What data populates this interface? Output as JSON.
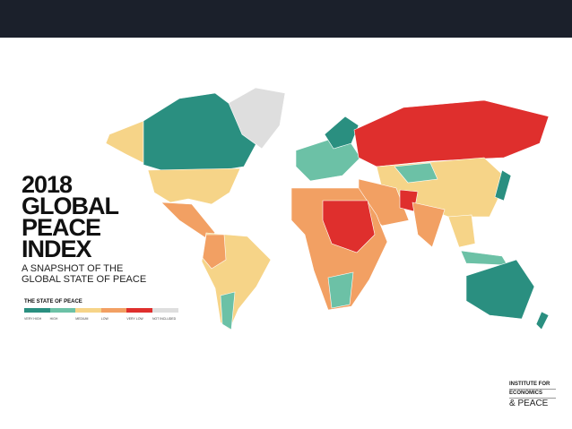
{
  "title": {
    "lines": [
      "2018",
      "GLOBAL",
      "PEACE",
      "INDEX"
    ]
  },
  "subtitle": {
    "lines": [
      "A SNAPSHOT OF THE",
      "GLOBAL STATE OF PEACE"
    ]
  },
  "legend": {
    "title": "THE STATE OF PEACE",
    "items": [
      {
        "name": "VERY HIGH",
        "color": "#2a8f80"
      },
      {
        "name": "HIGH",
        "color": "#6cc1a6"
      },
      {
        "name": "MEDIUM",
        "color": "#f6d488"
      },
      {
        "name": "LOW",
        "color": "#f2a063"
      },
      {
        "name": "VERY LOW",
        "color": "#df2f2d"
      },
      {
        "name": "NOT INCLUDED",
        "color": "#dedede"
      }
    ]
  },
  "logo": {
    "lines": [
      "INSTITUTE FOR",
      "ECONOMICS",
      "& PEACE"
    ]
  }
}
